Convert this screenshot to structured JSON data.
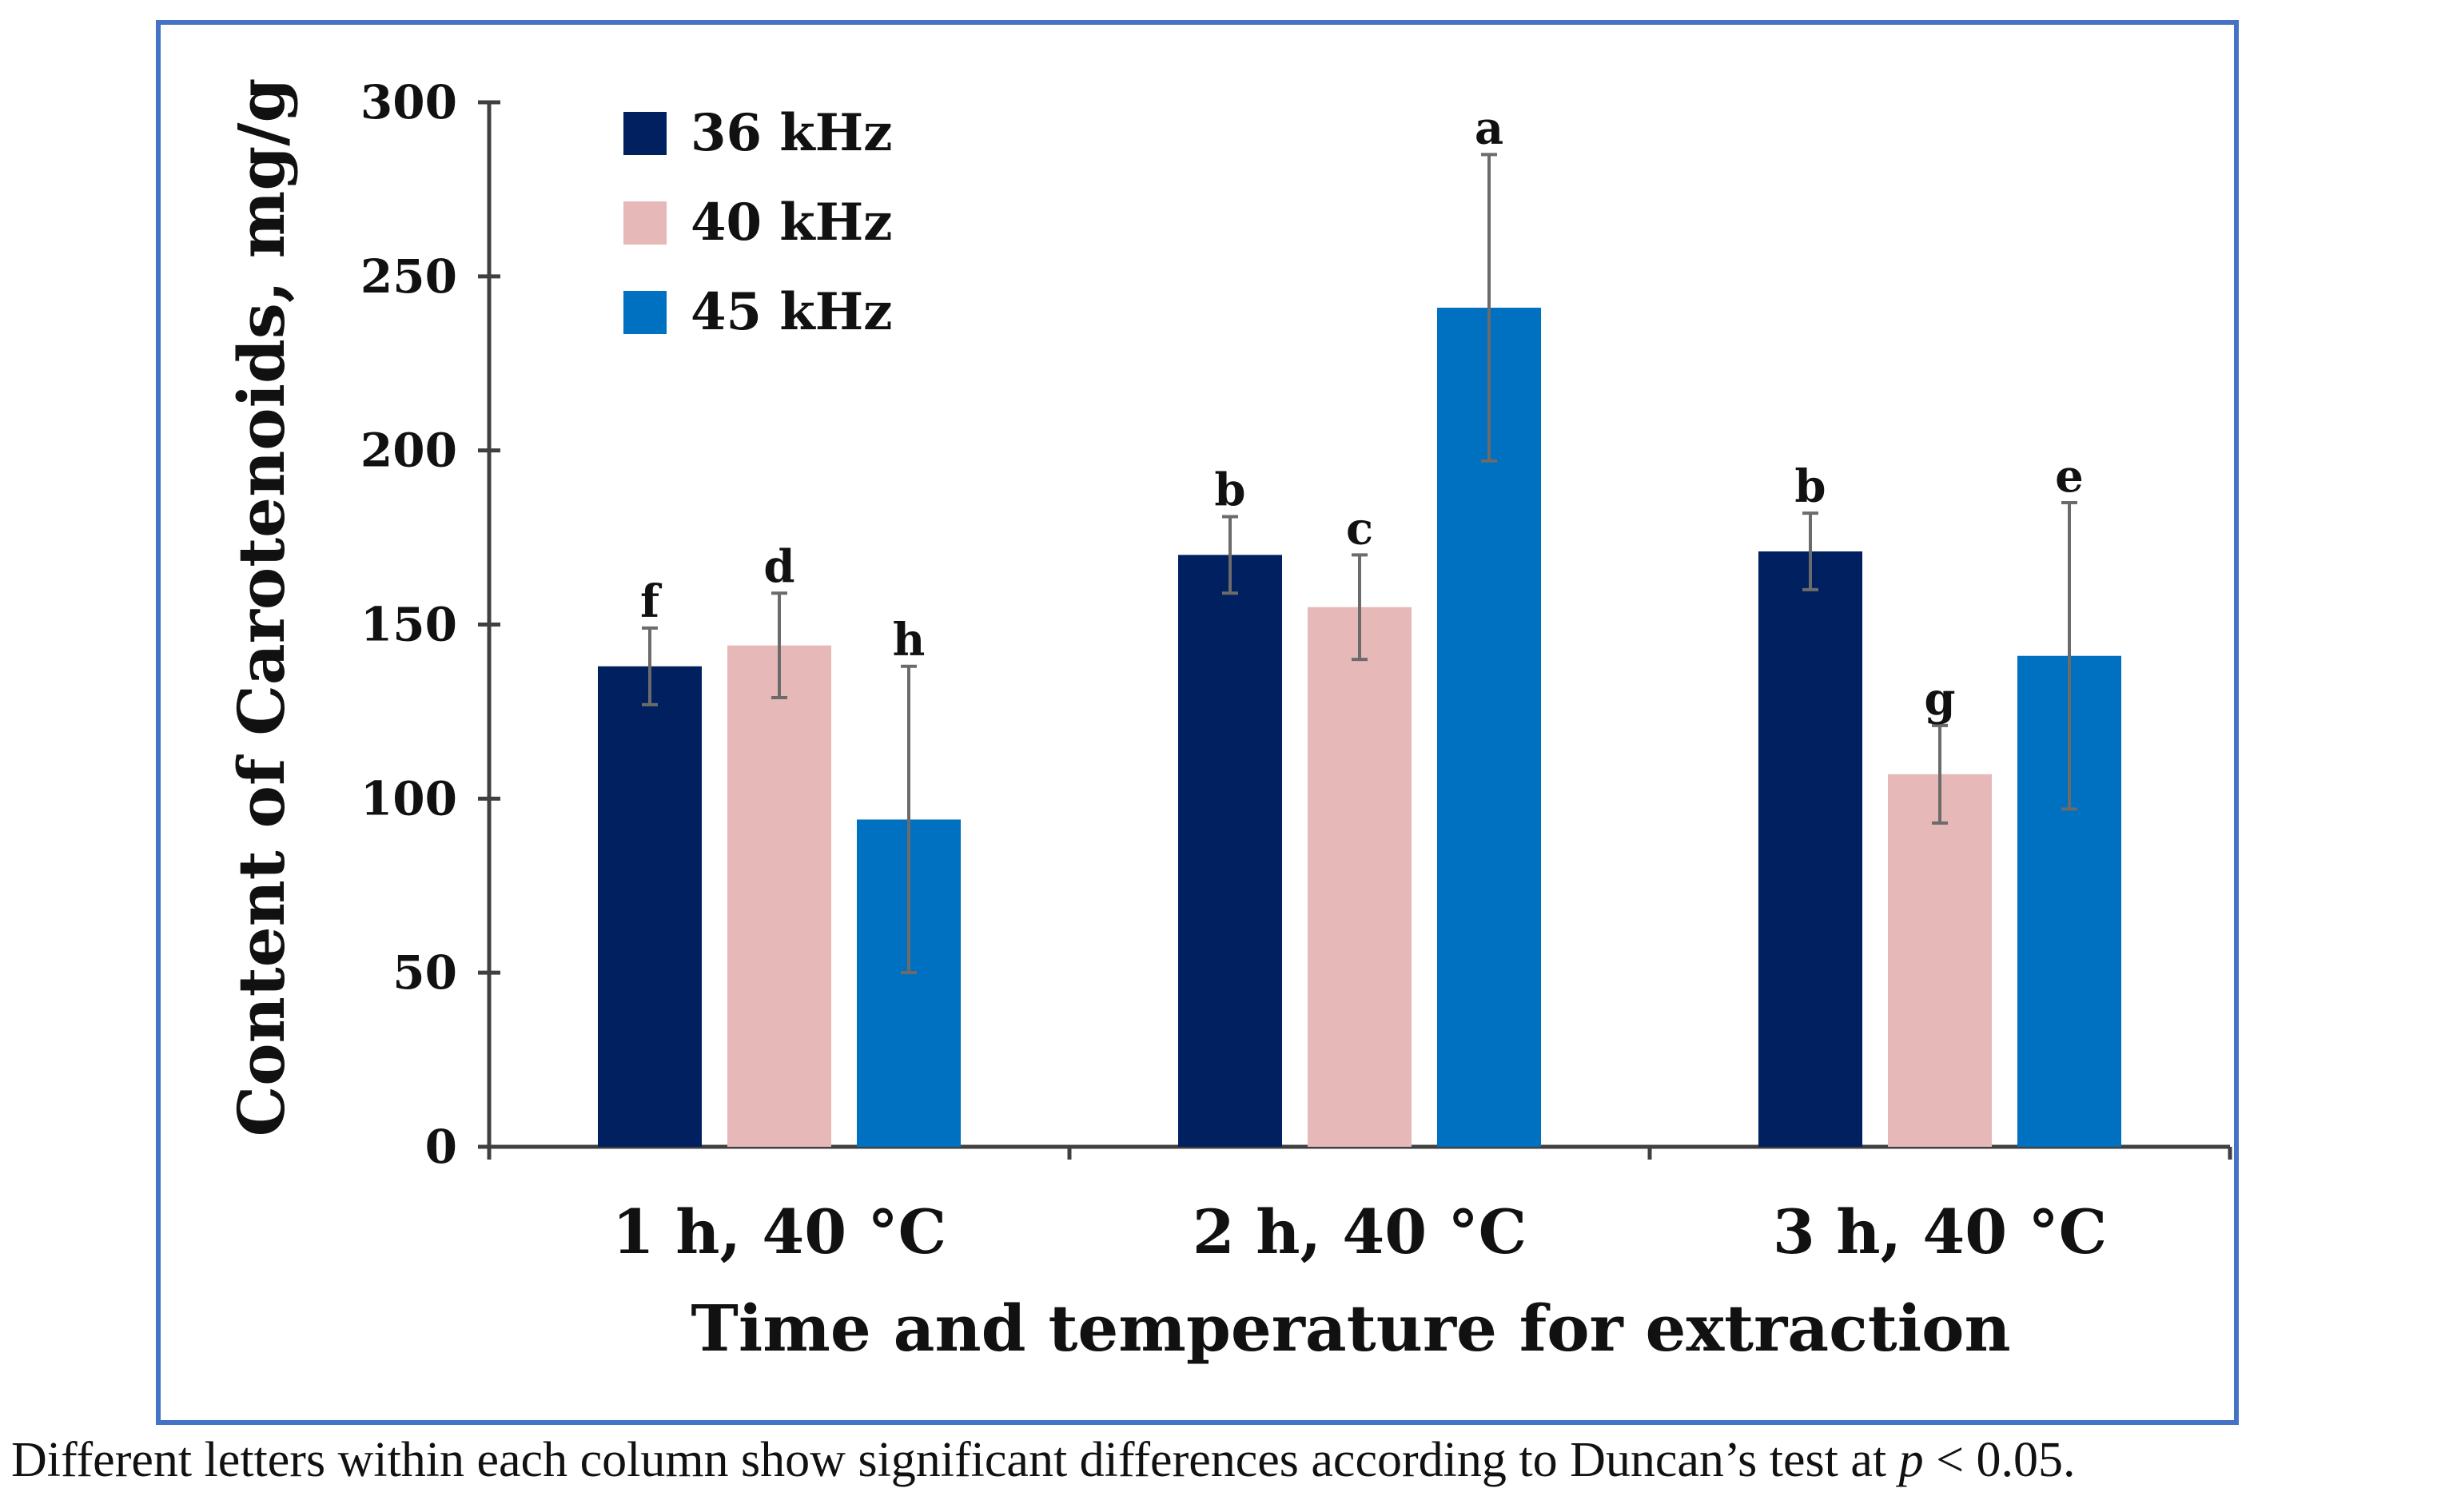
{
  "chart_data": {
    "type": "bar",
    "title": "",
    "xlabel": "Time and temperature for extraction",
    "ylabel": "Content of Carotenoids, mg/g",
    "ylim": [
      0,
      300
    ],
    "yticks": [
      0,
      50,
      100,
      150,
      200,
      250,
      300
    ],
    "categories": [
      "1 h, 40 °C",
      "2 h, 40 °C",
      "3 h, 40 °C"
    ],
    "series": [
      {
        "name": "36 kHz",
        "color": "#002060",
        "values": [
          138,
          170,
          171
        ],
        "errors": [
          11,
          11,
          11
        ],
        "letters": [
          "f",
          "b",
          "b"
        ]
      },
      {
        "name": "40 kHz",
        "color": "#e6b8b7",
        "values": [
          144,
          155,
          107
        ],
        "errors": [
          15,
          15,
          14
        ],
        "letters": [
          "d",
          "c",
          "g"
        ]
      },
      {
        "name": "45 kHz",
        "color": "#0070c0",
        "values": [
          94,
          241,
          141
        ],
        "errors": [
          44,
          44,
          44
        ],
        "letters": [
          "h",
          "a",
          "e"
        ]
      }
    ],
    "grid": false,
    "legend_position": "top-left"
  },
  "caption": {
    "prefix": "Different letters within each column show significant differences according to Duncan’s test at ",
    "p_symbol": "p",
    "suffix": " < 0.05."
  }
}
